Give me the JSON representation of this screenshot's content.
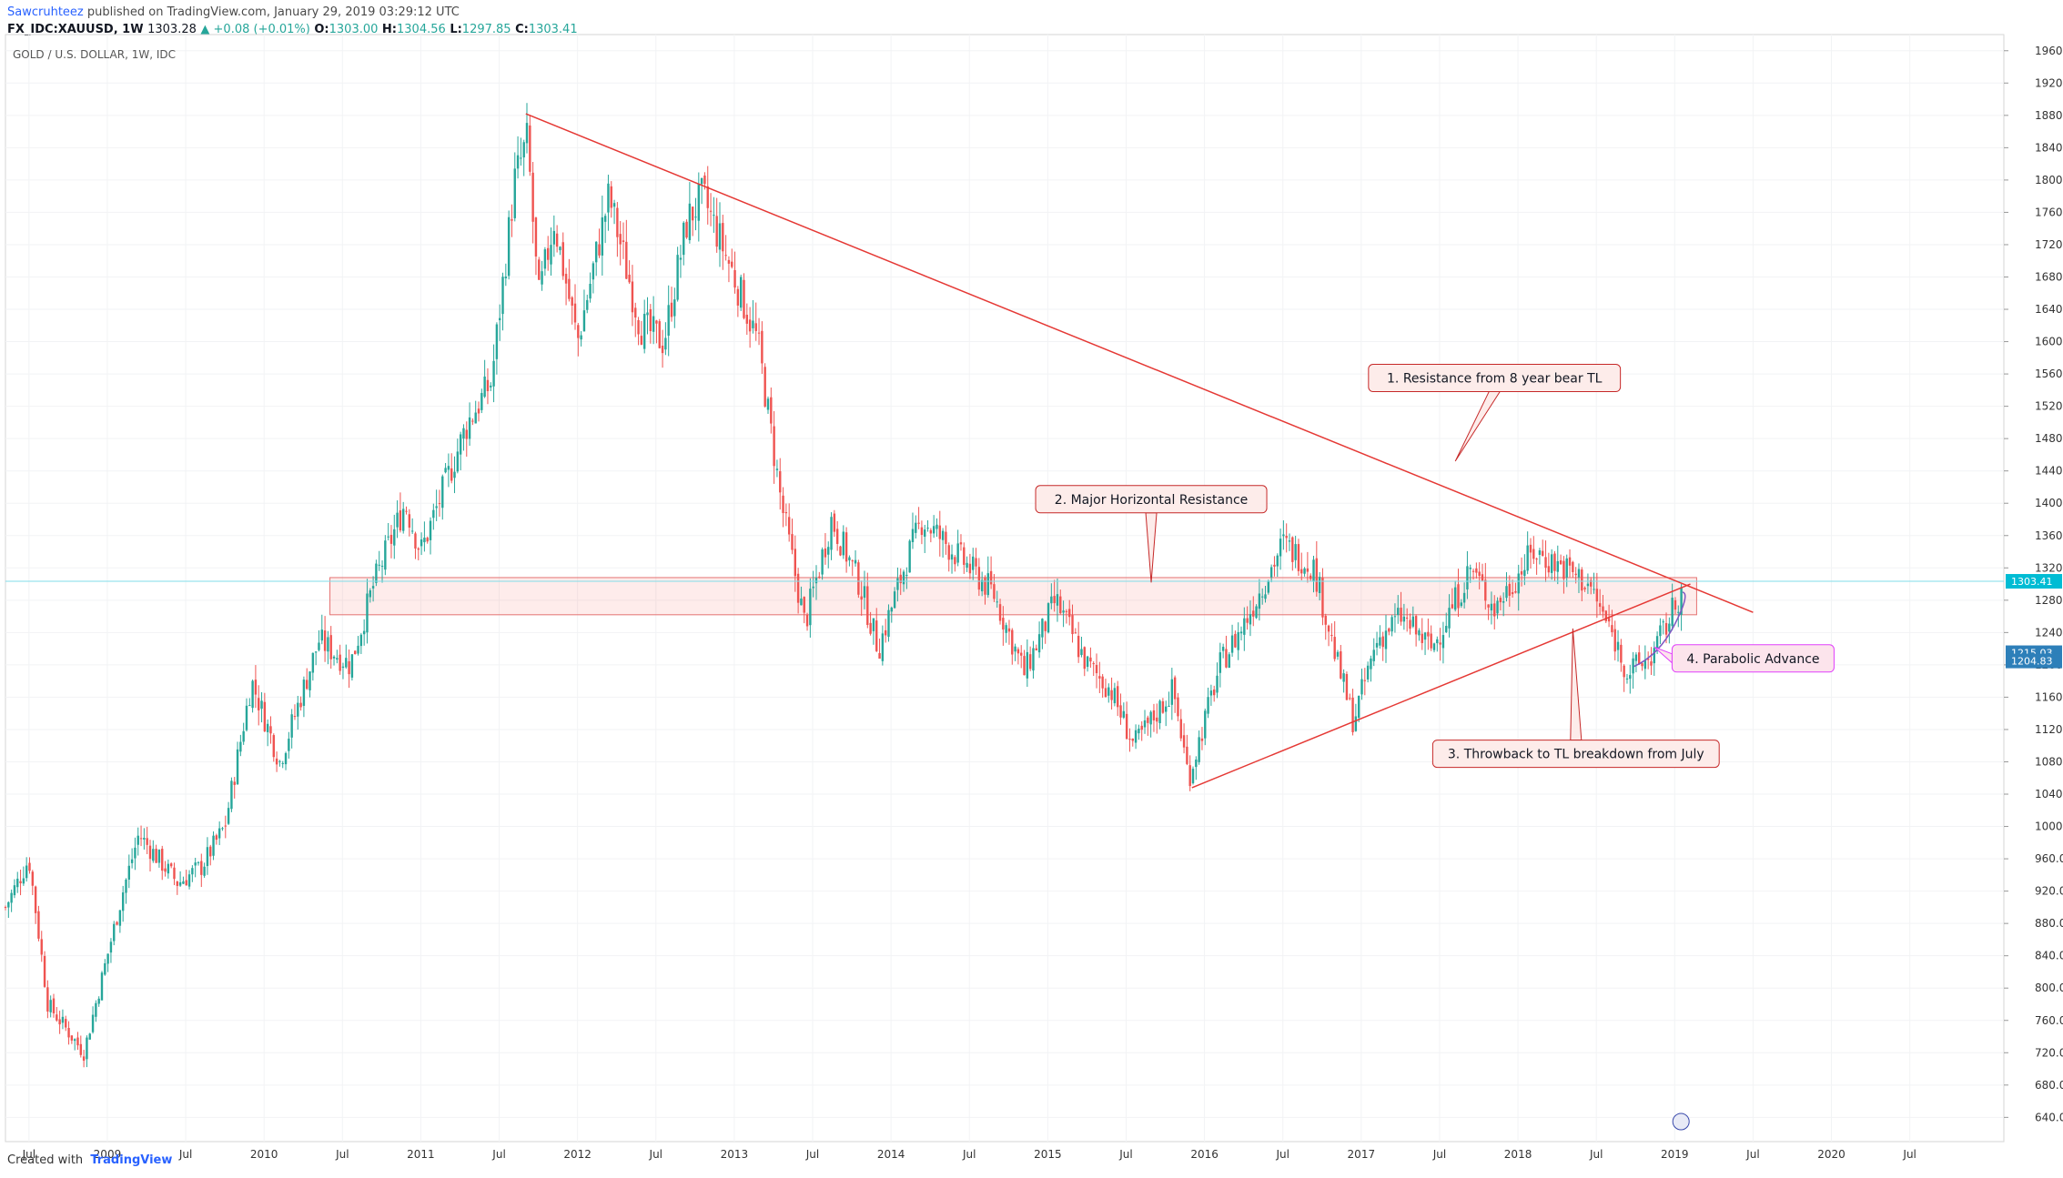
{
  "header": {
    "author": "Sawcruhteez",
    "published": "published on TradingView.com, January 29, 2019 03:29:12 UTC",
    "symbol": "FX_IDC:XAUUSD, 1W",
    "last": "1303.28",
    "change": "▲ +0.08 (+0.01%)",
    "o_label": "O:",
    "o_val": "1303.00",
    "h_label": "H:",
    "h_val": "1304.56",
    "l_label": "L:",
    "l_val": "1297.85",
    "c_label": "C:",
    "c_val": "1303.41"
  },
  "footer": {
    "created": "Created with",
    "brand": "TradingView"
  },
  "chart_data": {
    "type": "candlestick",
    "title": "GOLD / U.S. DOLLAR, 1W, IDC",
    "y_axis_side": "right",
    "ylim": [
      610,
      1980
    ],
    "y_ticks": [
      640,
      680,
      720,
      760,
      800,
      840,
      880,
      920,
      960,
      1000,
      1040,
      1080,
      1120,
      1160,
      1200,
      1240,
      1280,
      1320,
      1360,
      1400,
      1440,
      1480,
      1520,
      1560,
      1600,
      1640,
      1680,
      1720,
      1760,
      1800,
      1840,
      1880,
      1920,
      1960
    ],
    "x_range": [
      2008.35,
      2021.1
    ],
    "x_ticks": [
      {
        "label": "Jul",
        "t": 2008.5
      },
      {
        "label": "2009",
        "t": 2009.0
      },
      {
        "label": "Jul",
        "t": 2009.5
      },
      {
        "label": "2010",
        "t": 2010.0
      },
      {
        "label": "Jul",
        "t": 2010.5
      },
      {
        "label": "2011",
        "t": 2011.0
      },
      {
        "label": "Jul",
        "t": 2011.5
      },
      {
        "label": "2012",
        "t": 2012.0
      },
      {
        "label": "Jul",
        "t": 2012.5
      },
      {
        "label": "2013",
        "t": 2013.0
      },
      {
        "label": "Jul",
        "t": 2013.5
      },
      {
        "label": "2014",
        "t": 2014.0
      },
      {
        "label": "Jul",
        "t": 2014.5
      },
      {
        "label": "2015",
        "t": 2015.0
      },
      {
        "label": "Jul",
        "t": 2015.5
      },
      {
        "label": "2016",
        "t": 2016.0
      },
      {
        "label": "Jul",
        "t": 2016.5
      },
      {
        "label": "2017",
        "t": 2017.0
      },
      {
        "label": "Jul",
        "t": 2017.5
      },
      {
        "label": "2018",
        "t": 2018.0
      },
      {
        "label": "Jul",
        "t": 2018.5
      },
      {
        "label": "2019",
        "t": 2019.0
      },
      {
        "label": "Jul",
        "t": 2019.5
      },
      {
        "label": "2020",
        "t": 2020.0
      },
      {
        "label": "Jul",
        "t": 2020.5
      }
    ],
    "path_points": [
      [
        2008.35,
        900
      ],
      [
        2008.5,
        960
      ],
      [
        2008.62,
        780
      ],
      [
        2008.85,
        720
      ],
      [
        2009.1,
        920
      ],
      [
        2009.2,
        990
      ],
      [
        2009.45,
        930
      ],
      [
        2009.6,
        950
      ],
      [
        2009.75,
        1000
      ],
      [
        2009.92,
        1180
      ],
      [
        2010.1,
        1080
      ],
      [
        2010.35,
        1230
      ],
      [
        2010.55,
        1200
      ],
      [
        2010.7,
        1300
      ],
      [
        2010.9,
        1400
      ],
      [
        2011.0,
        1340
      ],
      [
        2011.3,
        1500
      ],
      [
        2011.45,
        1550
      ],
      [
        2011.6,
        1800
      ],
      [
        2011.68,
        1850
      ],
      [
        2011.75,
        1650
      ],
      [
        2011.85,
        1750
      ],
      [
        2012.0,
        1600
      ],
      [
        2012.2,
        1780
      ],
      [
        2012.4,
        1620
      ],
      [
        2012.55,
        1600
      ],
      [
        2012.7,
        1750
      ],
      [
        2012.8,
        1780
      ],
      [
        2013.0,
        1680
      ],
      [
        2013.15,
        1600
      ],
      [
        2013.3,
        1400
      ],
      [
        2013.45,
        1250
      ],
      [
        2013.62,
        1380
      ],
      [
        2013.8,
        1300
      ],
      [
        2013.92,
        1220
      ],
      [
        2014.1,
        1330
      ],
      [
        2014.2,
        1380
      ],
      [
        2014.5,
        1320
      ],
      [
        2014.65,
        1290
      ],
      [
        2014.85,
        1190
      ],
      [
        2015.05,
        1280
      ],
      [
        2015.25,
        1200
      ],
      [
        2015.4,
        1170
      ],
      [
        2015.55,
        1100
      ],
      [
        2015.8,
        1170
      ],
      [
        2015.9,
        1060
      ],
      [
        2016.1,
        1200
      ],
      [
        2016.25,
        1250
      ],
      [
        2016.5,
        1350
      ],
      [
        2016.7,
        1320
      ],
      [
        2016.85,
        1200
      ],
      [
        2016.95,
        1130
      ],
      [
        2017.1,
        1230
      ],
      [
        2017.25,
        1260
      ],
      [
        2017.45,
        1220
      ],
      [
        2017.7,
        1320
      ],
      [
        2017.85,
        1270
      ],
      [
        2018.1,
        1340
      ],
      [
        2018.3,
        1320
      ],
      [
        2018.45,
        1300
      ],
      [
        2018.62,
        1230
      ],
      [
        2018.7,
        1190
      ],
      [
        2018.85,
        1210
      ],
      [
        2018.95,
        1250
      ],
      [
        2019.06,
        1300
      ]
    ],
    "trendlines": [
      {
        "name": "8-year bear TL",
        "from": [
          2011.67,
          1882
        ],
        "to": [
          2019.5,
          1265
        ],
        "color": "#e53935"
      },
      {
        "name": "support TL",
        "from": [
          2015.92,
          1048
        ],
        "to": [
          2019.1,
          1300
        ],
        "color": "#e53935"
      }
    ],
    "zones": [
      {
        "name": "Major Horizontal Resistance",
        "t0": 2010.42,
        "t1": 2019.14,
        "y0": 1262,
        "y1": 1308
      }
    ],
    "current_price_line": 1303.41,
    "price_tags": [
      {
        "label": "1303.41",
        "y": 1303.41,
        "color": "#00bcd4"
      },
      {
        "label": "1215.03",
        "y": 1215.03,
        "color": "#2d7fb9"
      },
      {
        "label": "1204.83",
        "y": 1204.83,
        "color": "#2d7fb9"
      }
    ],
    "annotations": [
      {
        "text": "1. Resistance from 8 year bear TL",
        "box_t": 2017.85,
        "box_y": 1555,
        "tip_t": 2017.6,
        "tip_y": 1452,
        "style": "red"
      },
      {
        "text": "2. Major Horizontal Resistance",
        "box_t": 2015.66,
        "box_y": 1405,
        "tip_t": 2015.66,
        "tip_y": 1302,
        "style": "red"
      },
      {
        "text": "3. Throwback to TL breakdown from July",
        "box_t": 2018.37,
        "box_y": 1090,
        "tip_t": 2018.35,
        "tip_y": 1245,
        "style": "red"
      },
      {
        "text": "4. Parabolic Advance",
        "box_t": 2019.5,
        "box_y": 1208,
        "tip_t": 2018.87,
        "tip_y": 1222,
        "style": "pink"
      }
    ]
  }
}
